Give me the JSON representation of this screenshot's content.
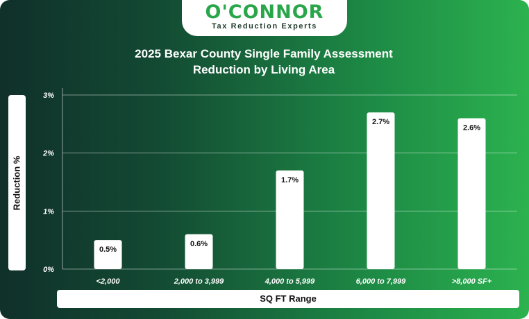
{
  "brand": {
    "name": "O'CONNOR",
    "tagline": "Tax Reduction Experts",
    "color": "#2aa64a"
  },
  "chart_data": {
    "type": "bar",
    "title": "2025 Bexar County Single Family Assessment Reduction by Living Area",
    "title_lines": [
      "2025 Bexar County Single Family Assessment",
      "Reduction by Living Area"
    ],
    "xlabel": "SQ FT Range",
    "ylabel": "Reduction %",
    "categories": [
      "<2,000",
      "2,000 to 3,999",
      "4,000 to 5,999",
      "6,000 to 7,999",
      ">8,000 SF+"
    ],
    "values": [
      0.5,
      0.6,
      1.7,
      2.7,
      2.6
    ],
    "data_labels": [
      "0.5%",
      "0.6%",
      "1.7%",
      "2.7%",
      "2.6%"
    ],
    "ylim": [
      0,
      3
    ],
    "yticks": [
      0,
      1,
      2,
      3
    ],
    "ytick_labels": [
      "0%",
      "1%",
      "2%",
      "3%"
    ],
    "grid": true,
    "bar_color": "#ffffff"
  }
}
